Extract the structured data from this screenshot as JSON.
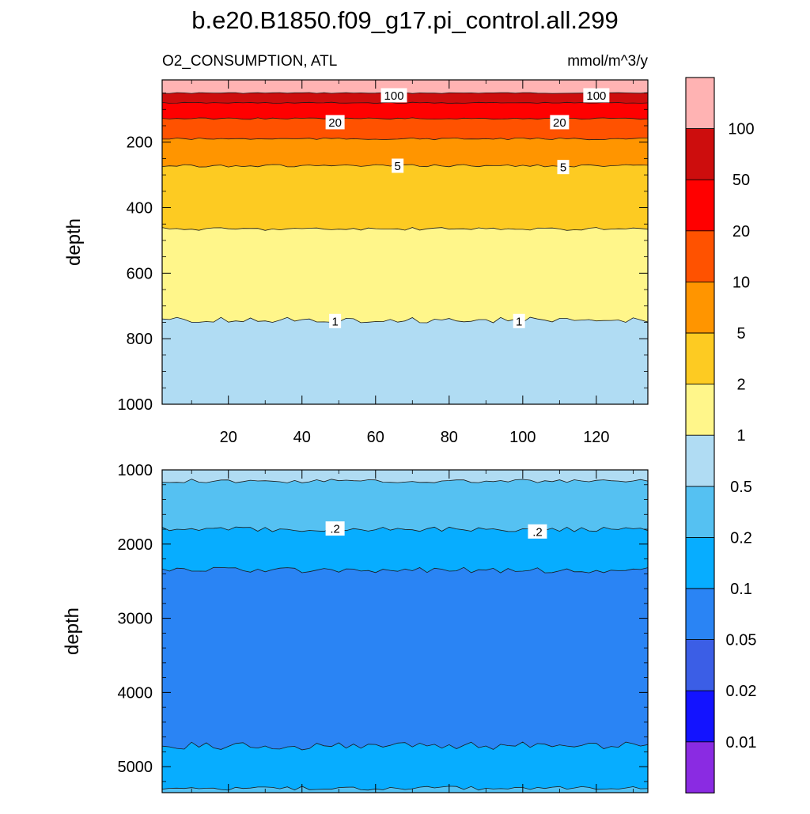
{
  "title": "b.e20.B1850.f09_g17.pi_control.all.299",
  "left_subtitle": "O2_CONSUMPTION, ATL",
  "right_subtitle": "mmol/m^3/y",
  "colors": {
    "band_0": "#8a2be2",
    "band_1": "#1313ff",
    "band_2": "#3b5ee6",
    "band_3": "#2a84f4",
    "band_4": "#07adff",
    "band_5": "#55c1f2",
    "band_6": "#b0dcf3",
    "band_7": "#fff68a",
    "band_8": "#fdcb22",
    "band_9": "#ff9500",
    "band_10": "#ff5200",
    "band_11": "#ff0000",
    "band_12": "#cd0d0d",
    "band_13": "#ffb3b3"
  },
  "chart_data": [
    {
      "type": "contour",
      "panel": "upper",
      "ylabel": "depth",
      "xlim": [
        2,
        134
      ],
      "ylim": [
        1000,
        10
      ],
      "y_reversed": true,
      "x_ticks": [
        20,
        40,
        60,
        80,
        100,
        120
      ],
      "y_ticks": [
        200,
        400,
        600,
        800,
        1000
      ],
      "contour_levels": [
        {
          "level": 100,
          "depth": 50
        },
        {
          "level": 50,
          "depth": 80
        },
        {
          "level": 20,
          "depth": 128
        },
        {
          "level": 10,
          "depth": 190
        },
        {
          "level": 5,
          "depth": 272
        },
        {
          "level": 2,
          "depth": 465
        },
        {
          "level": 1,
          "depth": 743
        }
      ],
      "line_labels": [
        {
          "text": "100",
          "x": 65,
          "depth": 57
        },
        {
          "text": "100",
          "x": 120,
          "depth": 57
        },
        {
          "text": "20",
          "x": 49,
          "depth": 139
        },
        {
          "text": "20",
          "x": 110,
          "depth": 139
        },
        {
          "text": "5",
          "x": 66,
          "depth": 272
        },
        {
          "text": "5",
          "x": 111,
          "depth": 276
        },
        {
          "text": "1",
          "x": 49,
          "depth": 746
        },
        {
          "text": "1",
          "x": 99,
          "depth": 746
        }
      ]
    },
    {
      "type": "contour",
      "panel": "lower",
      "ylabel": "depth",
      "xlim": [
        2,
        134
      ],
      "ylim": [
        5350,
        1000
      ],
      "y_reversed": true,
      "y_ticks": [
        1000,
        2000,
        3000,
        4000,
        5000
      ],
      "contour_levels": [
        {
          "level": 0.5,
          "depth": 1150
        },
        {
          "level": 0.2,
          "depth": 1800
        },
        {
          "level": 0.1,
          "depth": 2350
        },
        {
          "level": 0.05,
          "depth": 4720
        },
        {
          "level": 0.1,
          "depth": 5290
        }
      ],
      "line_labels": [
        {
          "text": ".2",
          "x": 49,
          "depth": 1790
        },
        {
          "text": ".2",
          "x": 104,
          "depth": 1830
        }
      ]
    }
  ],
  "colorbar": {
    "labels": [
      "100",
      "50",
      "20",
      "10",
      "5",
      "2",
      "1",
      "0.5",
      "0.2",
      "0.1",
      "0.05",
      "0.02",
      "0.01"
    ]
  }
}
